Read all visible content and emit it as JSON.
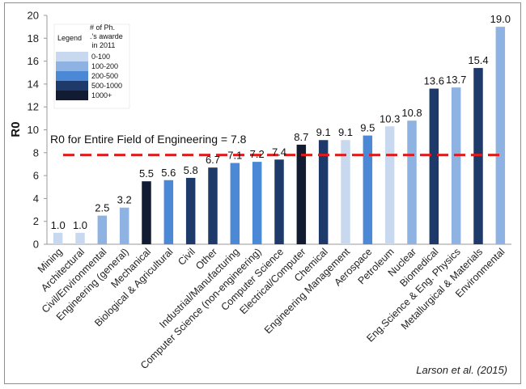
{
  "chart_data": {
    "type": "bar",
    "title": "",
    "xlabel": "",
    "ylabel": "R0",
    "ylim": [
      0,
      20
    ],
    "yticks": [
      0,
      2,
      4,
      6,
      8,
      10,
      12,
      14,
      16,
      18,
      20
    ],
    "ytick_labels": [
      "0",
      "2",
      "4",
      "6",
      "8",
      "10",
      "12",
      "14",
      "16",
      "18",
      "20"
    ],
    "grid": false,
    "categories": [
      "Mining",
      "Architectural",
      "Civil/Environmental",
      "Engineering (general)",
      "Mechanical",
      "Biological & Agricultural",
      "Civil",
      "Other",
      "Industrial/Manufacturing",
      "Computer Science (non-engineering)",
      "Computer Science",
      "Electrical/Computer",
      "Chemical",
      "Engineering Management",
      "Aerospace",
      "Petroleum",
      "Nuclear",
      "Biomedical",
      "Eng.Science & Eng. Physics",
      "Metallurgical & Materials",
      "Environmental"
    ],
    "values": [
      1.0,
      1.0,
      2.5,
      3.2,
      5.5,
      5.6,
      5.8,
      6.7,
      7.1,
      7.2,
      7.4,
      8.7,
      9.1,
      9.1,
      9.5,
      10.3,
      10.8,
      13.6,
      13.7,
      15.4,
      19.0
    ],
    "value_labels": [
      "1.0",
      "1.0",
      "2.5",
      "3.2",
      "5.5",
      "5.6",
      "5.8",
      "6.7",
      "7.1",
      "7.2",
      "7.4",
      "8.7",
      "9.1",
      "9.1",
      "9.5",
      "10.3",
      "10.8",
      "13.6",
      "13.7",
      "15.4",
      "19.0"
    ],
    "phd_bins": [
      "0-100",
      "0-100",
      "100-200",
      "100-200",
      "1000+",
      "200-500",
      "500-1000",
      "500-1000",
      "200-500",
      "200-500",
      "500-1000",
      "1000+",
      "500-1000",
      "0-100",
      "200-500",
      "0-100",
      "100-200",
      "500-1000",
      "100-200",
      "500-1000",
      "100-200"
    ],
    "reference_line": {
      "value": 7.8,
      "label": "R0 for  Entire Field of Engineering = 7.8",
      "color": "#e11b1b"
    },
    "legend": {
      "title": "Legend",
      "header": "# of Ph.D.'s awarded in 2011",
      "position": "top-left",
      "entries": [
        {
          "label": "0-100",
          "color": "#c8d9ef"
        },
        {
          "label": "100-200",
          "color": "#8eb3e3"
        },
        {
          "label": "200-500",
          "color": "#4b88d6"
        },
        {
          "label": "500-1000",
          "color": "#1e3a6b"
        },
        {
          "label": "1000+",
          "color": "#111c33"
        }
      ]
    },
    "source": "Larson et al. (2015)"
  }
}
